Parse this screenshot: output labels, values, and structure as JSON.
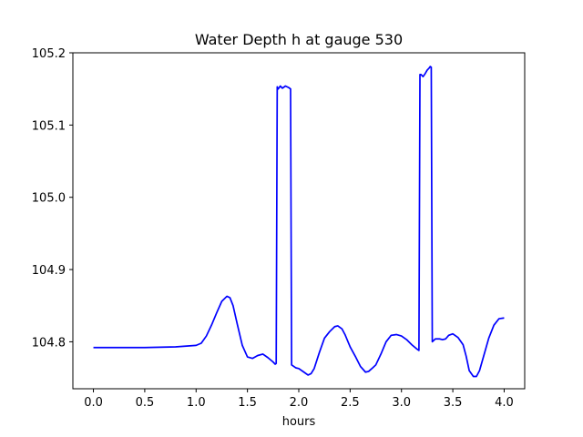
{
  "chart_data": {
    "type": "line",
    "title": "Water Depth h at gauge 530",
    "xlabel": "hours",
    "ylabel": "",
    "xlim": [
      -0.2,
      4.2
    ],
    "ylim": [
      104.735,
      105.2
    ],
    "xticks": [
      0.0,
      0.5,
      1.0,
      1.5,
      2.0,
      2.5,
      3.0,
      3.5,
      4.0
    ],
    "xtick_labels": [
      "0.0",
      "0.5",
      "1.0",
      "1.5",
      "2.0",
      "2.5",
      "3.0",
      "3.5",
      "4.0"
    ],
    "yticks": [
      104.8,
      104.9,
      105.0,
      105.1,
      105.2
    ],
    "ytick_labels": [
      "104.8",
      "104.9",
      "105.0",
      "105.1",
      "105.2"
    ],
    "grid": false,
    "line_color": "#0000ff",
    "series": [
      {
        "x": [
          0.0,
          0.5,
          0.8,
          1.0,
          1.05,
          1.1,
          1.15,
          1.2,
          1.25,
          1.3,
          1.33,
          1.36,
          1.4,
          1.45,
          1.5,
          1.55,
          1.6,
          1.65,
          1.7,
          1.75,
          1.77,
          1.78,
          1.79,
          1.8,
          1.82,
          1.84,
          1.87,
          1.9,
          1.91,
          1.92,
          1.93,
          1.97,
          2.0,
          2.05,
          2.09,
          2.12,
          2.15,
          2.2,
          2.25,
          2.3,
          2.35,
          2.38,
          2.42,
          2.45,
          2.5,
          2.55,
          2.6,
          2.65,
          2.68,
          2.72,
          2.75,
          2.8,
          2.85,
          2.9,
          2.95,
          3.0,
          3.05,
          3.1,
          3.15,
          3.17,
          3.18,
          3.19,
          3.21,
          3.23,
          3.25,
          3.27,
          3.28,
          3.29,
          3.3,
          3.33,
          3.37,
          3.4,
          3.43,
          3.46,
          3.5,
          3.55,
          3.6,
          3.63,
          3.66,
          3.7,
          3.73,
          3.76,
          3.8,
          3.85,
          3.9,
          3.95,
          4.0
        ],
        "y": [
          104.792,
          104.792,
          104.793,
          104.795,
          104.798,
          104.808,
          104.823,
          104.84,
          104.856,
          104.863,
          104.861,
          104.85,
          104.825,
          104.795,
          104.779,
          104.777,
          104.781,
          104.783,
          104.778,
          104.772,
          104.769,
          104.77,
          105.153,
          105.15,
          105.154,
          105.151,
          105.154,
          105.152,
          105.151,
          105.15,
          104.768,
          104.764,
          104.763,
          104.758,
          104.754,
          104.756,
          104.763,
          104.785,
          104.805,
          104.814,
          104.821,
          104.822,
          104.818,
          104.81,
          104.793,
          104.78,
          104.766,
          104.758,
          104.759,
          104.764,
          104.768,
          104.783,
          104.8,
          104.809,
          104.81,
          104.808,
          104.803,
          104.796,
          104.79,
          104.788,
          105.17,
          105.17,
          105.167,
          105.171,
          105.176,
          105.179,
          105.181,
          105.18,
          104.8,
          104.804,
          104.804,
          104.803,
          104.804,
          104.809,
          104.811,
          104.806,
          104.796,
          104.78,
          104.76,
          104.752,
          104.752,
          104.76,
          104.78,
          104.805,
          104.823,
          104.832,
          104.833
        ]
      }
    ]
  }
}
